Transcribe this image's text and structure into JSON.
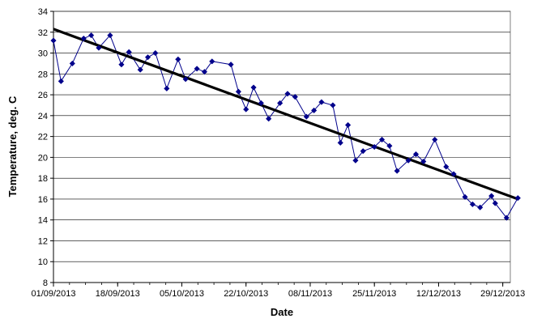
{
  "chart_data": {
    "type": "line",
    "title": "",
    "xlabel": "Date",
    "ylabel": "Temperature, deg. C",
    "xlim": [
      "2013-09-01",
      "2013-12-31"
    ],
    "ylim": [
      8,
      34
    ],
    "yticks": [
      8,
      10,
      12,
      14,
      16,
      18,
      20,
      22,
      24,
      26,
      28,
      30,
      32,
      34
    ],
    "xticks": [
      "01/09/2013",
      "18/09/2013",
      "05/10/2013",
      "22/10/2013",
      "08/11/2013",
      "25/11/2013",
      "12/12/2013",
      "29/12/2013"
    ],
    "xtick_dates": [
      "2013-09-01",
      "2013-09-18",
      "2013-10-05",
      "2013-10-22",
      "2013-11-08",
      "2013-11-25",
      "2013-12-12",
      "2013-12-29"
    ],
    "grid": "horizontal",
    "legend": "none",
    "series": [
      {
        "marker": "diamond",
        "color": "#00008B",
        "x": [
          "2013-09-01",
          "2013-09-03",
          "2013-09-06",
          "2013-09-09",
          "2013-09-11",
          "2013-09-13",
          "2013-09-16",
          "2013-09-19",
          "2013-09-21",
          "2013-09-24",
          "2013-09-26",
          "2013-09-28",
          "2013-10-01",
          "2013-10-04",
          "2013-10-06",
          "2013-10-09",
          "2013-10-11",
          "2013-10-13",
          "2013-10-18",
          "2013-10-20",
          "2013-10-22",
          "2013-10-24",
          "2013-10-26",
          "2013-10-28",
          "2013-10-31",
          "2013-11-02",
          "2013-11-04",
          "2013-11-07",
          "2013-11-09",
          "2013-11-11",
          "2013-11-14",
          "2013-11-16",
          "2013-11-18",
          "2013-11-20",
          "2013-11-22",
          "2013-11-25",
          "2013-11-27",
          "2013-11-29",
          "2013-12-01",
          "2013-12-04",
          "2013-12-06",
          "2013-12-08",
          "2013-12-11",
          "2013-12-14",
          "2013-12-16",
          "2013-12-19",
          "2013-12-21",
          "2013-12-23",
          "2013-12-26",
          "2013-12-27",
          "2013-12-30",
          "2014-01-02"
        ],
        "y": [
          31.2,
          27.3,
          29.0,
          31.4,
          31.7,
          30.5,
          31.7,
          28.9,
          30.1,
          28.4,
          29.6,
          30.0,
          26.6,
          29.4,
          27.5,
          28.5,
          28.2,
          29.2,
          28.9,
          26.3,
          24.6,
          26.7,
          25.2,
          23.7,
          25.2,
          26.1,
          25.8,
          23.9,
          24.5,
          25.3,
          25.0,
          21.4,
          23.1,
          19.7,
          20.6,
          21.0,
          21.7,
          21.1,
          18.7,
          19.7,
          20.3,
          19.6,
          21.7,
          19.1,
          18.4,
          16.2,
          15.5,
          15.2,
          16.3,
          15.6,
          14.2,
          16.1
        ]
      },
      {
        "kind": "trendline",
        "color": "#000000",
        "x": [
          "2013-09-01",
          "2014-01-02"
        ],
        "y": [
          32.3,
          16.0
        ]
      }
    ]
  }
}
